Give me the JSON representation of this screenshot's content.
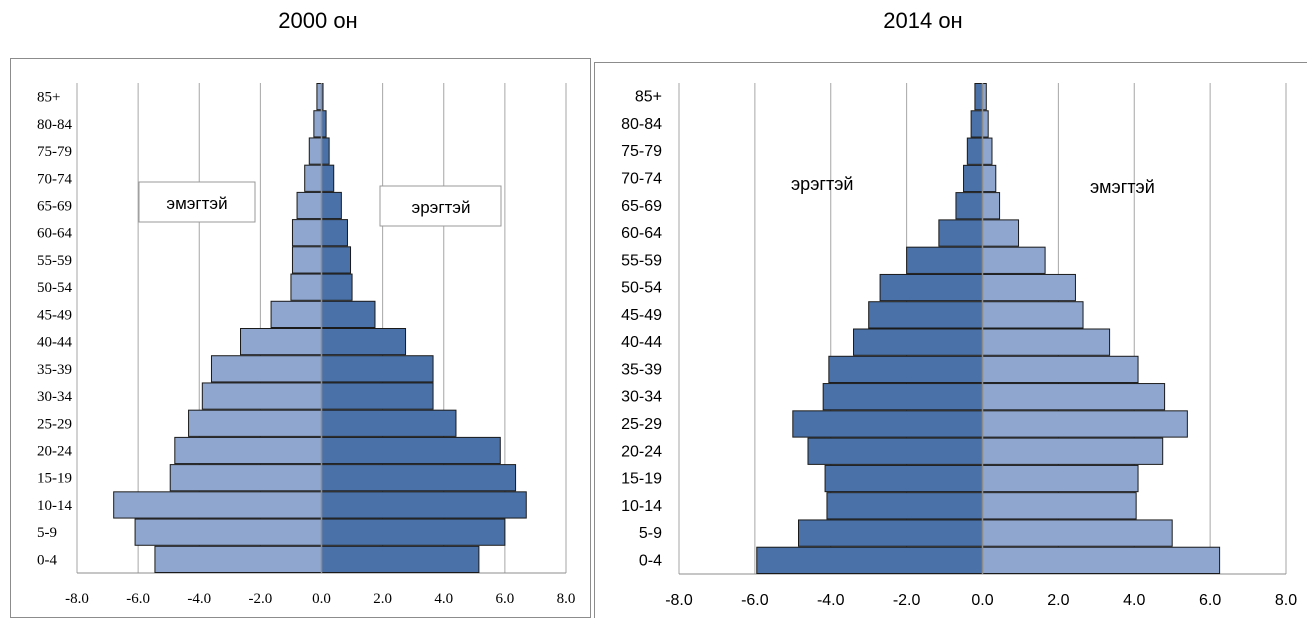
{
  "chart_data": [
    {
      "type": "bar",
      "title": "2000 он",
      "orientation": "horizontal",
      "categories": [
        "0-4",
        "5-9",
        "10-14",
        "15-19",
        "20-24",
        "25-29",
        "30-34",
        "35-39",
        "40-44",
        "45-49",
        "50-54",
        "55-59",
        "60-64",
        "65-69",
        "70-74",
        "75-79",
        "80-84",
        "85+"
      ],
      "series": [
        {
          "name": "эмэгтэй",
          "color": "#8fa6cf",
          "values": [
            -5.45,
            -6.1,
            -6.8,
            -4.95,
            -4.8,
            -4.35,
            -3.9,
            -3.6,
            -2.65,
            -1.65,
            -1.0,
            -0.95,
            -0.95,
            -0.8,
            -0.55,
            -0.4,
            -0.25,
            -0.15
          ]
        },
        {
          "name": "эрэгтэй",
          "color": "#4a71a8",
          "values": [
            5.15,
            6.0,
            6.7,
            6.35,
            5.85,
            4.4,
            3.65,
            3.65,
            2.75,
            1.75,
            1.0,
            0.95,
            0.85,
            0.65,
            0.4,
            0.25,
            0.15,
            0.05
          ]
        }
      ],
      "xlim": [
        -8,
        8
      ],
      "xticks": [
        "-8.0",
        "-6.0",
        "-4.0",
        "-2.0",
        "0.0",
        "2.0",
        "4.0",
        "6.0",
        "8.0"
      ],
      "grid": "vertical"
    },
    {
      "type": "bar",
      "title": "2014 он",
      "orientation": "horizontal",
      "categories": [
        "0-4",
        "5-9",
        "10-14",
        "15-19",
        "20-24",
        "25-29",
        "30-34",
        "35-39",
        "40-44",
        "45-49",
        "50-54",
        "55-59",
        "60-64",
        "65-69",
        "70-74",
        "75-79",
        "80-84",
        "85+"
      ],
      "series": [
        {
          "name": "эрэгтэй",
          "color": "#4a71a8",
          "values": [
            -5.95,
            -4.85,
            -4.1,
            -4.15,
            -4.6,
            -5.0,
            -4.2,
            -4.05,
            -3.4,
            -3.0,
            -2.7,
            -2.0,
            -1.15,
            -0.7,
            -0.5,
            -0.4,
            -0.3,
            -0.2
          ]
        },
        {
          "name": "эмэгтэй",
          "color": "#8fa6cf",
          "values": [
            6.25,
            5.0,
            4.05,
            4.1,
            4.75,
            5.4,
            4.8,
            4.1,
            3.35,
            2.65,
            2.45,
            1.65,
            0.95,
            0.45,
            0.35,
            0.25,
            0.15,
            0.1
          ]
        }
      ],
      "xlim": [
        -8,
        8
      ],
      "xticks": [
        "-8.0",
        "-6.0",
        "-4.0",
        "-2.0",
        "0.0",
        "2.0",
        "4.0",
        "6.0",
        "8.0"
      ],
      "grid": "vertical"
    }
  ]
}
